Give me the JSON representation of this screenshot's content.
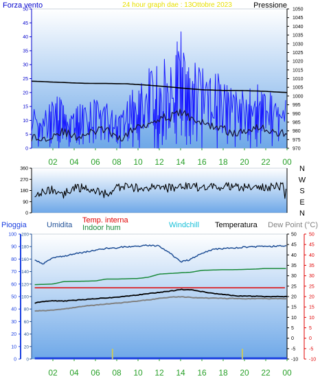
{
  "header": {
    "left": "Forza vento",
    "center": "24 hour graph dae : 13Ottobre 2023",
    "right": "Pressione"
  },
  "x_ticks": [
    "02",
    "04",
    "06",
    "08",
    "10",
    "12",
    "14",
    "16",
    "18",
    "20",
    "22",
    "00"
  ],
  "colors": {
    "pressure": "#000000",
    "wind": "#1a1aff",
    "gust": "#0000cc",
    "winddir": "#000000",
    "humidity": "#1f4f96",
    "indoor_hum": "#1a8a3a",
    "temp_in": "#e00000",
    "windchill": "#18c0d8",
    "temperature": "#000000",
    "dewpoint": "#808080",
    "rain": "#1a3fe0",
    "accent_x": "#28a028",
    "gust_mark": "#c8c860",
    "header_center": "#e8e000"
  },
  "chart_data": [
    {
      "type": "line",
      "title": "24 hour graph dae : 13Ottobre 2023",
      "xlabel": "",
      "x_range_hours": [
        0,
        24
      ],
      "left_axis": {
        "label": "Forza vento",
        "ticks": [
          0,
          5,
          10,
          15,
          20,
          25,
          30,
          35,
          40,
          45,
          50
        ],
        "ylim": [
          0,
          50
        ]
      },
      "right_axis": {
        "label": "Pressione",
        "ticks": [
          970,
          975,
          980,
          985,
          990,
          995,
          1000,
          1005,
          1010,
          1015,
          1020,
          1025,
          1030,
          1035,
          1040,
          1045,
          1050
        ],
        "ylim": [
          970,
          1050
        ]
      },
      "series": [
        {
          "name": "Pressione",
          "axis": "right",
          "x": [
            0,
            1,
            2,
            3,
            4,
            5,
            6,
            7,
            8,
            9,
            10,
            11,
            12,
            13,
            14,
            15,
            16,
            17,
            18,
            19,
            20,
            21,
            22,
            23,
            24
          ],
          "y": [
            1008.5,
            1008.3,
            1008.0,
            1007.8,
            1007.5,
            1007.3,
            1007.2,
            1007.2,
            1007.1,
            1007.0,
            1006.6,
            1006.2,
            1005.7,
            1005.2,
            1004.6,
            1004.1,
            1003.6,
            1003.4,
            1003.2,
            1003.2,
            1003.1,
            1002.9,
            1002.7,
            1002.3,
            1002.0
          ]
        },
        {
          "name": "Forza vento",
          "axis": "left",
          "x": [
            0,
            1,
            2,
            3,
            4,
            5,
            6,
            7,
            8,
            9,
            10,
            11,
            12,
            13,
            14,
            15,
            16,
            17,
            18,
            19,
            20,
            21,
            22,
            23,
            24
          ],
          "y": [
            4,
            3,
            5,
            6,
            4,
            5,
            6,
            7,
            3,
            5,
            8,
            9,
            11,
            11,
            13,
            11,
            9,
            8,
            7,
            5,
            6,
            8,
            7,
            5,
            6
          ]
        },
        {
          "name": "Raffica",
          "axis": "left",
          "x": [
            0,
            1,
            2,
            3,
            4,
            5,
            6,
            7,
            8,
            9,
            10,
            11,
            12,
            13,
            14,
            15,
            16,
            17,
            18,
            19,
            20,
            21,
            22,
            23,
            24
          ],
          "y": [
            13,
            12,
            15,
            16,
            14,
            13,
            17,
            16,
            10,
            14,
            22,
            24,
            26,
            30,
            42,
            30,
            25,
            24,
            21,
            17,
            18,
            21,
            20,
            14,
            17
          ]
        }
      ]
    },
    {
      "type": "scatter",
      "xlabel": "",
      "ylabel": "",
      "ylim": [
        0,
        360
      ],
      "left_ticks": [
        0,
        90,
        180,
        270,
        360
      ],
      "right_labels": [
        "N",
        "W",
        "S",
        "E",
        "N"
      ],
      "series": [
        {
          "name": "Direzione vento",
          "x": [
            0,
            1,
            2,
            3,
            4,
            5,
            6,
            7,
            8,
            9,
            10,
            11,
            12,
            13,
            14,
            15,
            16,
            17,
            18,
            19,
            20,
            21,
            22,
            23,
            24
          ],
          "y": [
            160,
            170,
            190,
            150,
            205,
            200,
            180,
            150,
            200,
            210,
            200,
            205,
            195,
            200,
            220,
            205,
            210,
            215,
            210,
            215,
            200,
            205,
            210,
            215,
            205
          ]
        }
      ]
    },
    {
      "type": "line",
      "xlabel": "",
      "legend": [
        "Pioggia",
        "Umidita",
        "Temp. interna",
        "Indoor hum",
        "Windchill",
        "Temperatura",
        "Dew Point (°C)"
      ],
      "rain_axis": {
        "ticks": [
          0,
          10,
          20,
          30,
          40,
          50,
          60,
          70,
          80,
          90,
          100
        ],
        "ylim": [
          0,
          100
        ]
      },
      "hum_axis": {
        "ticks": [
          0,
          20,
          40,
          60,
          80,
          100,
          120,
          140,
          160,
          180,
          200
        ],
        "ylim": [
          0,
          200
        ]
      },
      "temp_axis": {
        "ticks": [
          -10,
          -5,
          0,
          5,
          10,
          15,
          20,
          25,
          30,
          35,
          40,
          45,
          50
        ],
        "ylim": [
          -10,
          50
        ]
      },
      "series": [
        {
          "name": "Umidita",
          "axis": "hum",
          "x": [
            0,
            1,
            2,
            3,
            4,
            5,
            6,
            7,
            8,
            9,
            10,
            11,
            12,
            13,
            14,
            15,
            16,
            17,
            18,
            19,
            20,
            21,
            22,
            23,
            24
          ],
          "y": [
            163,
            152,
            162,
            165,
            168,
            171,
            174,
            177,
            178,
            180,
            181,
            182,
            181,
            170,
            155,
            160,
            170,
            175,
            177,
            178,
            179,
            180,
            180,
            181,
            181
          ]
        },
        {
          "name": "Indoor hum",
          "axis": "hum",
          "x": [
            0,
            2,
            3,
            6,
            7,
            8,
            10,
            11,
            12,
            13,
            14,
            15,
            16,
            18,
            19,
            21,
            22,
            24
          ],
          "y": [
            119,
            120,
            124,
            125,
            128,
            128,
            129,
            131,
            136,
            137,
            138,
            139,
            142,
            143,
            143,
            144,
            145,
            145
          ]
        },
        {
          "name": "Temp. interna",
          "axis": "temp",
          "x": [
            0,
            24
          ],
          "y": [
            24.2,
            24.2
          ]
        },
        {
          "name": "Temperatura",
          "axis": "temp",
          "x": [
            0,
            1,
            2,
            3,
            4,
            5,
            6,
            7,
            8,
            9,
            10,
            11,
            12,
            13,
            14,
            15,
            16,
            17,
            18,
            19,
            20,
            21,
            22,
            23,
            24
          ],
          "y": [
            16.6,
            17.6,
            18.0,
            17.8,
            18.2,
            18.6,
            19.0,
            19.4,
            19.6,
            20.2,
            20.8,
            21.4,
            22.0,
            22.6,
            23.4,
            23.2,
            22.4,
            21.6,
            21.0,
            20.4,
            20.2,
            20.2,
            20.0,
            20.0,
            20.0
          ]
        },
        {
          "name": "Dew Point (°C)",
          "axis": "temp",
          "x": [
            0,
            1,
            2,
            3,
            4,
            5,
            6,
            7,
            8,
            9,
            10,
            11,
            12,
            13,
            14,
            15,
            16,
            17,
            18,
            19,
            20,
            21,
            22,
            23,
            24
          ],
          "y": [
            13.2,
            13.2,
            13.5,
            14.0,
            14.8,
            15.4,
            15.9,
            16.4,
            16.8,
            17.3,
            17.9,
            18.4,
            19.2,
            19.7,
            19.9,
            19.6,
            19.4,
            19.2,
            19.1,
            19.1,
            19.0,
            19.0,
            19.0,
            19.0,
            19.0
          ]
        },
        {
          "name": "Pioggia",
          "axis": "rain",
          "x": [
            0,
            24
          ],
          "y": [
            0,
            0
          ]
        }
      ]
    }
  ]
}
